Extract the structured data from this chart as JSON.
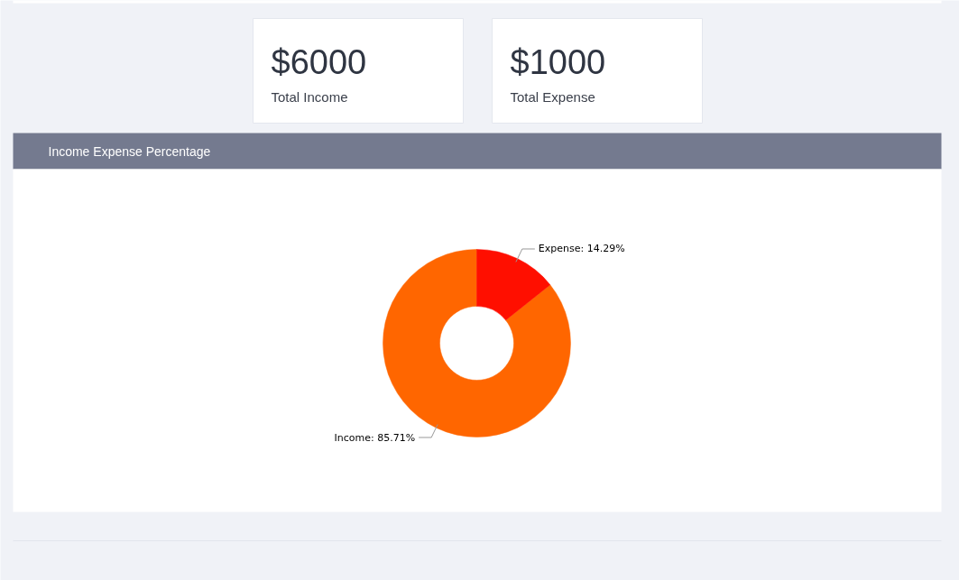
{
  "chart_data": [
    {
      "type": "other",
      "annotations": [
        "$6000",
        "Total Income"
      ]
    },
    {
      "type": "other",
      "annotations": [
        "$1000",
        "Total Expense"
      ]
    },
    {
      "type": "donut",
      "title": "Income Expense Percentage",
      "categories": [
        "Income",
        "Expense"
      ],
      "values": [
        85.71,
        14.29
      ],
      "colors": [
        "#ff6600",
        "#ff0f00"
      ],
      "value_labels": [
        "85.71%",
        "14.29%"
      ]
    }
  ]
}
